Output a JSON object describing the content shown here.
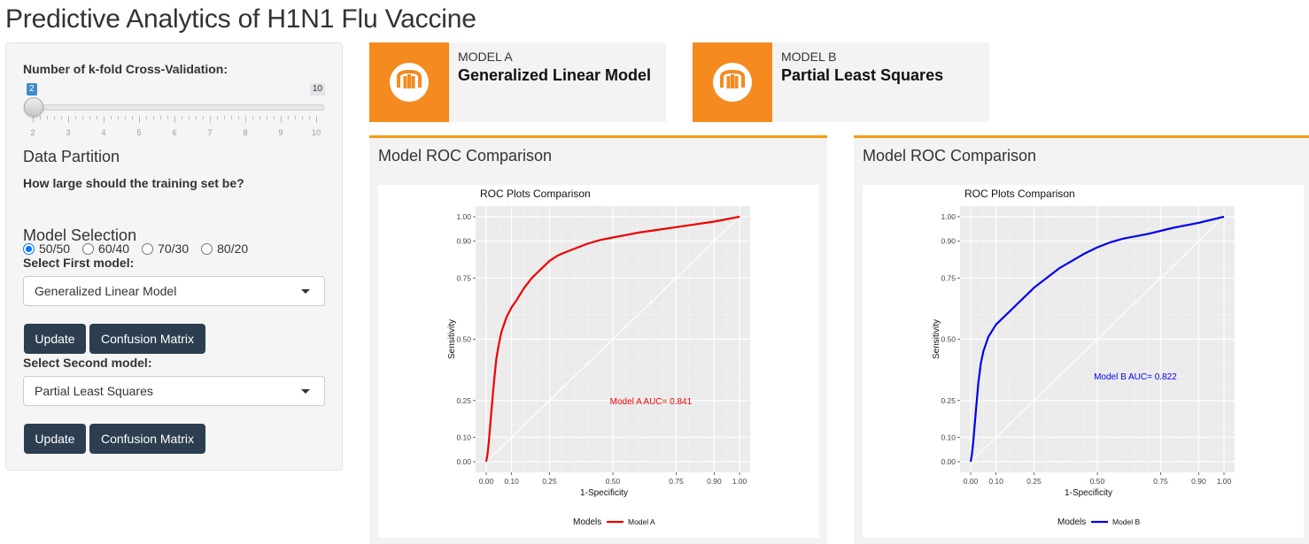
{
  "app": {
    "title": "Predictive Analytics of H1N1 Flu Vaccine"
  },
  "sidebar": {
    "kfold_label": "Number of k-fold Cross-Validation:",
    "slider": {
      "value": "2",
      "min": 2,
      "max": "10",
      "tick_labels": [
        "2",
        "3",
        "4",
        "5",
        "6",
        "7",
        "8",
        "9",
        "10"
      ]
    },
    "partition_heading": "Data Partition",
    "partition_question": "How large should the training set be?",
    "partition_options": [
      {
        "label": "50/50",
        "selected": true
      },
      {
        "label": "60/40",
        "selected": false
      },
      {
        "label": "70/30",
        "selected": false
      },
      {
        "label": "80/20",
        "selected": false
      }
    ],
    "model_heading": "Model Selection",
    "first_model_label": "Select First model:",
    "first_model_value": "Generalized Linear Model",
    "second_model_label": "Select Second model:",
    "second_model_value": "Partial Least Squares",
    "update_label": "Update",
    "confusion_label": "Confusion Matrix"
  },
  "infoboxes": [
    {
      "title": "MODEL A",
      "value": "Generalized Linear Model",
      "icon": "university-icon",
      "color": "#f58a1f"
    },
    {
      "title": "MODEL B",
      "value": "Partial Least Squares",
      "icon": "university-icon",
      "color": "#f58a1f"
    }
  ],
  "boxes": [
    {
      "title": "Model ROC Comparison"
    },
    {
      "title": "Model ROC Comparison"
    }
  ],
  "chart_data": [
    {
      "type": "line",
      "title": "ROC Plots Comparison",
      "xlabel": "1-Specificity",
      "ylabel": "Sensitivity",
      "xticks": [
        0.0,
        0.1,
        0.25,
        0.5,
        0.75,
        0.9,
        1.0
      ],
      "yticks": [
        0.0,
        0.1,
        0.25,
        0.5,
        0.75,
        0.9,
        1.0
      ],
      "xlim": [
        0,
        1
      ],
      "ylim": [
        0,
        1
      ],
      "legend_title": "Models",
      "legend_position": "bottom",
      "annotation": "Model A AUC= 0.841",
      "annotation_at": [
        0.65,
        0.25
      ],
      "series": [
        {
          "name": "Model A",
          "color": "#ee0000",
          "x": [
            0.0,
            0.005,
            0.01,
            0.02,
            0.03,
            0.04,
            0.05,
            0.06,
            0.08,
            0.1,
            0.12,
            0.15,
            0.18,
            0.2,
            0.22,
            0.25,
            0.28,
            0.3,
            0.35,
            0.4,
            0.45,
            0.5,
            0.55,
            0.6,
            0.7,
            0.8,
            0.9,
            1.0
          ],
          "y": [
            0.0,
            0.03,
            0.08,
            0.2,
            0.32,
            0.42,
            0.48,
            0.53,
            0.59,
            0.63,
            0.66,
            0.71,
            0.75,
            0.77,
            0.79,
            0.82,
            0.84,
            0.85,
            0.87,
            0.89,
            0.905,
            0.915,
            0.925,
            0.935,
            0.95,
            0.965,
            0.98,
            1.0
          ]
        }
      ]
    },
    {
      "type": "line",
      "title": "ROC Plots Comparison",
      "xlabel": "1-Specificity",
      "ylabel": "Sensitivity",
      "xticks": [
        0.0,
        0.1,
        0.25,
        0.5,
        0.75,
        0.9,
        1.0
      ],
      "yticks": [
        0.0,
        0.1,
        0.25,
        0.5,
        0.75,
        0.9,
        1.0
      ],
      "xlim": [
        0,
        1
      ],
      "ylim": [
        0,
        1
      ],
      "legend_title": "Models",
      "legend_position": "bottom",
      "annotation": "Model B AUC= 0.822",
      "annotation_at": [
        0.65,
        0.35
      ],
      "series": [
        {
          "name": "Model B",
          "color": "#0000ee",
          "x": [
            0.0,
            0.005,
            0.01,
            0.02,
            0.03,
            0.04,
            0.05,
            0.07,
            0.1,
            0.13,
            0.16,
            0.2,
            0.25,
            0.3,
            0.35,
            0.4,
            0.45,
            0.5,
            0.55,
            0.6,
            0.7,
            0.8,
            0.9,
            1.0
          ],
          "y": [
            0.0,
            0.03,
            0.08,
            0.2,
            0.32,
            0.4,
            0.45,
            0.51,
            0.56,
            0.59,
            0.62,
            0.66,
            0.71,
            0.75,
            0.79,
            0.82,
            0.85,
            0.875,
            0.895,
            0.91,
            0.93,
            0.955,
            0.975,
            1.0
          ]
        }
      ]
    }
  ]
}
